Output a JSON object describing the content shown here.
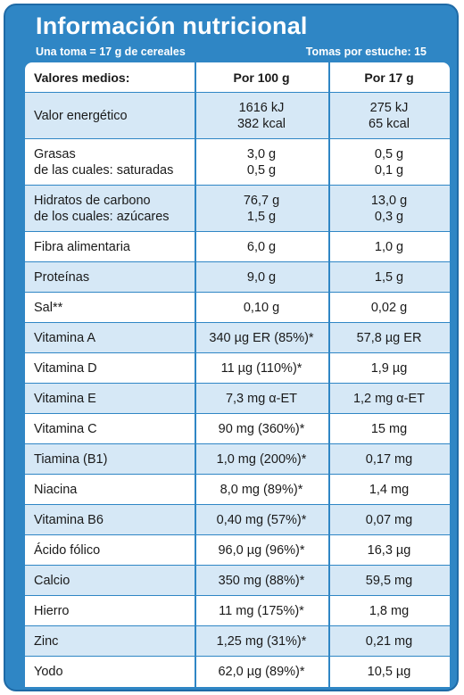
{
  "header": {
    "title": "Información nutricional",
    "serving": "Una toma = 17 g de cereales",
    "servings_per_pack": "Tomas por estuche: 15"
  },
  "columns": {
    "label": "Valores medios:",
    "per100": "Por 100 g",
    "per17": "Por 17 g"
  },
  "rows": [
    {
      "label": [
        "Valor energético"
      ],
      "per100": [
        "1616 kJ",
        "382 kcal"
      ],
      "per17": [
        "275 kJ",
        "65 kcal"
      ]
    },
    {
      "label": [
        "Grasas",
        "de las cuales: saturadas"
      ],
      "per100": [
        "3,0 g",
        "0,5 g"
      ],
      "per17": [
        "0,5 g",
        "0,1 g"
      ]
    },
    {
      "label": [
        "Hidratos de carbono",
        "de los cuales: azúcares"
      ],
      "per100": [
        "76,7 g",
        "1,5 g"
      ],
      "per17": [
        "13,0 g",
        "0,3 g"
      ]
    },
    {
      "label": [
        "Fibra alimentaria"
      ],
      "per100": [
        "6,0 g"
      ],
      "per17": [
        "1,0 g"
      ]
    },
    {
      "label": [
        "Proteínas"
      ],
      "per100": [
        "9,0 g"
      ],
      "per17": [
        "1,5 g"
      ]
    },
    {
      "label": [
        "Sal**"
      ],
      "per100": [
        "0,10 g"
      ],
      "per17": [
        "0,02 g"
      ]
    },
    {
      "label": [
        "Vitamina A"
      ],
      "per100": [
        "340 µg ER (85%)*"
      ],
      "per17": [
        "57,8 µg ER"
      ]
    },
    {
      "label": [
        "Vitamina D"
      ],
      "per100": [
        "11 µg (110%)*"
      ],
      "per17": [
        "1,9 µg"
      ]
    },
    {
      "label": [
        "Vitamina E"
      ],
      "per100": [
        "7,3 mg α-ET"
      ],
      "per17": [
        "1,2 mg α-ET"
      ]
    },
    {
      "label": [
        "Vitamina C"
      ],
      "per100": [
        "90 mg (360%)*"
      ],
      "per17": [
        "15 mg"
      ]
    },
    {
      "label": [
        "Tiamina (B1)"
      ],
      "per100": [
        "1,0 mg (200%)*"
      ],
      "per17": [
        "0,17 mg"
      ]
    },
    {
      "label": [
        "Niacina"
      ],
      "per100": [
        "8,0 mg (89%)*"
      ],
      "per17": [
        "1,4 mg"
      ]
    },
    {
      "label": [
        "Vitamina B6"
      ],
      "per100": [
        "0,40 mg (57%)*"
      ],
      "per17": [
        "0,07 mg"
      ]
    },
    {
      "label": [
        "Ácido fólico"
      ],
      "per100": [
        "96,0 µg (96%)*"
      ],
      "per17": [
        "16,3 µg"
      ]
    },
    {
      "label": [
        "Calcio"
      ],
      "per100": [
        "350 mg (88%)*"
      ],
      "per17": [
        "59,5 mg"
      ]
    },
    {
      "label": [
        "Hierro"
      ],
      "per100": [
        "11 mg (175%)*"
      ],
      "per17": [
        "1,8 mg"
      ]
    },
    {
      "label": [
        "Zinc"
      ],
      "per100": [
        "1,25 mg (31%)*"
      ],
      "per17": [
        "0,21 mg"
      ]
    },
    {
      "label": [
        "Yodo"
      ],
      "per100": [
        "62,0 µg (89%)*"
      ],
      "per17": [
        "10,5 µg"
      ]
    }
  ]
}
